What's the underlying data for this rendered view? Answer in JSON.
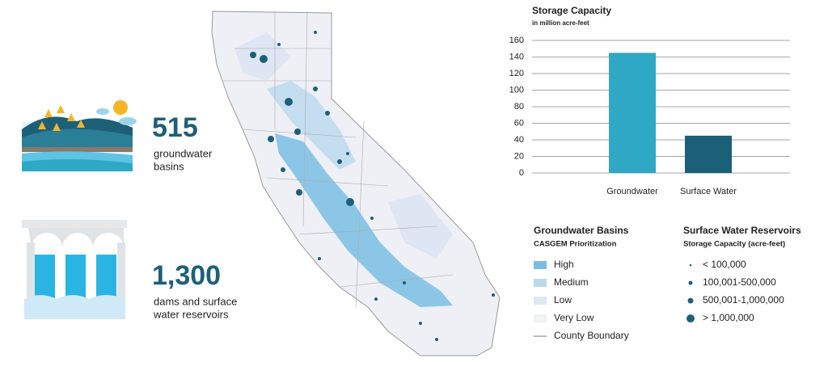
{
  "chart_data": {
    "type": "bar",
    "title": "Storage Capacity",
    "subtitle": "in million acre-feet",
    "categories": [
      "Groundwater",
      "Surface Water"
    ],
    "values": [
      145,
      45
    ],
    "colors": [
      "#2ea8c4",
      "#1c5f78"
    ],
    "ylim": [
      0,
      160
    ],
    "yticks": [
      0,
      20,
      40,
      60,
      80,
      100,
      120,
      140,
      160
    ],
    "grid": true
  },
  "stats": [
    {
      "number": "515",
      "lines": [
        "groundwater",
        "basins"
      ]
    },
    {
      "number": "1,300",
      "lines": [
        "dams and surface",
        "water reservoirs"
      ]
    }
  ],
  "basins_legend": {
    "title": "Groundwater Basins",
    "subtitle": "CASGEM Prioritization",
    "items": [
      "High",
      "Medium",
      "Low",
      "Very Low",
      "County Boundary"
    ]
  },
  "reservoirs_legend": {
    "title": "Surface Water Reservoirs",
    "subtitle": "Storage Capacity (acre-feet)",
    "items": [
      "< 100,000",
      "100,001-500,000",
      "500,001-1,000,000",
      "> 1,000,000"
    ]
  }
}
